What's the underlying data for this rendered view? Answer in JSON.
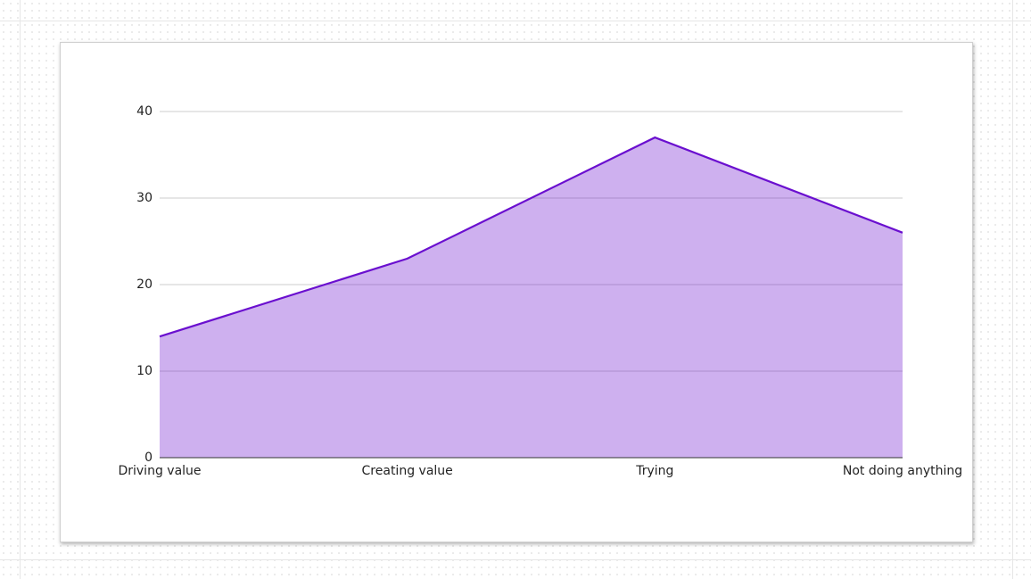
{
  "chart_data": {
    "type": "area",
    "categories": [
      "Driving value",
      "Creating value",
      "Trying",
      "Not doing anything"
    ],
    "values": [
      14,
      23,
      37,
      26
    ],
    "color": "#6a0fcf",
    "ylim": [
      0,
      40
    ],
    "yticks": [
      0,
      10,
      20,
      30,
      40
    ],
    "grid": true
  }
}
